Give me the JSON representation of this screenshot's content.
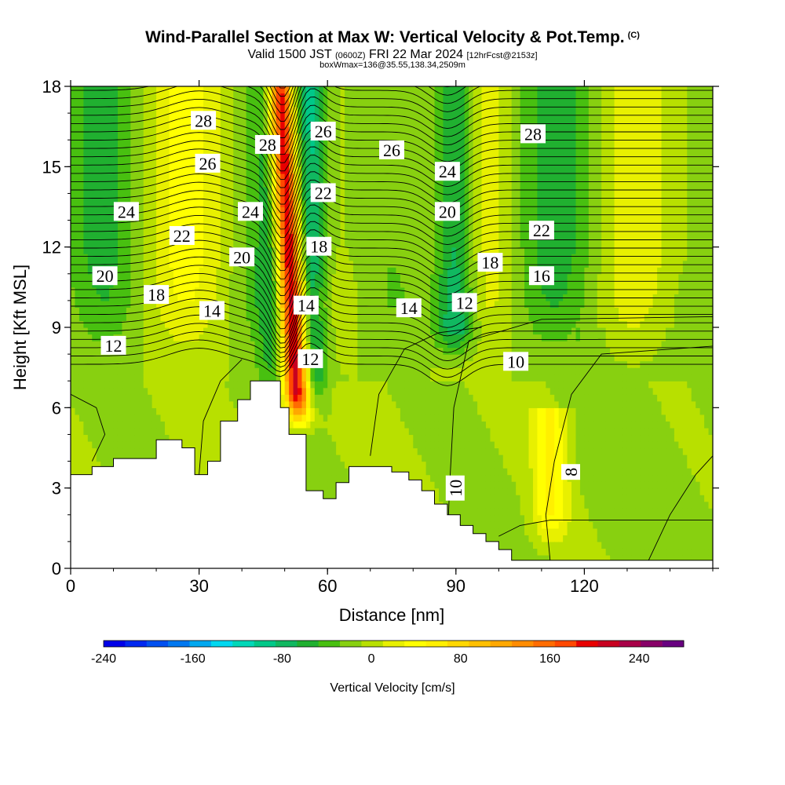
{
  "title": {
    "main": "Wind-Parallel Section at Max W: Vertical Velocity & Pot.Temp.",
    "copyright": "(C)",
    "valid_prefix": "Valid 1500 JST",
    "valid_utc": "(0600Z)",
    "valid_date": "FRI 22 Mar 2024",
    "valid_fcst": "[12hrFcst@2153z]",
    "box": "boxWmax=136@35.55,138.34,2509m"
  },
  "chart_data": {
    "type": "heatmap",
    "xlabel": "Distance [nm]",
    "ylabel": "Height [Kft MSL]",
    "xlim": [
      0,
      150
    ],
    "ylim": [
      0,
      18
    ],
    "x_ticks": [
      0,
      30,
      60,
      90,
      120
    ],
    "y_ticks": [
      0,
      3,
      6,
      9,
      12,
      15,
      18
    ],
    "colorbar": {
      "label": "Vertical Velocity [cm/s]",
      "range": [
        -240,
        280
      ],
      "step": 20,
      "tick_labels": [
        "-240",
        "-160",
        "-80",
        "0",
        "80",
        "160",
        "240"
      ],
      "tick_values": [
        -240,
        -160,
        -80,
        0,
        80,
        160,
        240
      ],
      "colors": [
        "#0000e8",
        "#0028f0",
        "#0050f0",
        "#0078f0",
        "#00a8f0",
        "#00d8f0",
        "#00d8b8",
        "#00c888",
        "#10b860",
        "#20b030",
        "#48c010",
        "#88d010",
        "#b8e000",
        "#e8f000",
        "#ffff00",
        "#fff000",
        "#ffd800",
        "#ffc000",
        "#ffa800",
        "#ff8c00",
        "#ff6c00",
        "#ff4800",
        "#e80000",
        "#c80020",
        "#a80048",
        "#880068",
        "#680080"
      ]
    },
    "terrain": [
      [
        0,
        3.5
      ],
      [
        5,
        3.5
      ],
      [
        5,
        3.8
      ],
      [
        10,
        3.8
      ],
      [
        10,
        4.1
      ],
      [
        20,
        4.1
      ],
      [
        20,
        4.8
      ],
      [
        26,
        4.8
      ],
      [
        26,
        4.5
      ],
      [
        29,
        4.5
      ],
      [
        29,
        3.5
      ],
      [
        32,
        3.5
      ],
      [
        32,
        4.0
      ],
      [
        35,
        4.0
      ],
      [
        35,
        5.5
      ],
      [
        39,
        5.5
      ],
      [
        39,
        6.3
      ],
      [
        42,
        6.3
      ],
      [
        42,
        7.0
      ],
      [
        49,
        7.0
      ],
      [
        49,
        6.0
      ],
      [
        51,
        6.0
      ],
      [
        51,
        5.0
      ],
      [
        55,
        5.0
      ],
      [
        55,
        2.9
      ],
      [
        59,
        2.9
      ],
      [
        59,
        2.6
      ],
      [
        62,
        2.6
      ],
      [
        62,
        3.2
      ],
      [
        65,
        3.2
      ],
      [
        65,
        3.8
      ],
      [
        75,
        3.8
      ],
      [
        75,
        3.6
      ],
      [
        79,
        3.6
      ],
      [
        79,
        3.3
      ],
      [
        82,
        3.3
      ],
      [
        82,
        2.9
      ],
      [
        85,
        2.9
      ],
      [
        85,
        2.4
      ],
      [
        88,
        2.4
      ],
      [
        88,
        2.0
      ],
      [
        91,
        2.0
      ],
      [
        91,
        1.6
      ],
      [
        94,
        1.6
      ],
      [
        94,
        1.3
      ],
      [
        97,
        1.3
      ],
      [
        97,
        1.0
      ],
      [
        100,
        1.0
      ],
      [
        100,
        0.7
      ],
      [
        103,
        0.7
      ],
      [
        103,
        0.3
      ],
      [
        150,
        0.3
      ]
    ],
    "velocity_features": [
      {
        "x": 51,
        "z_from": 6.5,
        "z_to": 18,
        "w": 260
      },
      {
        "x": 47,
        "z_from": 7,
        "z_to": 18,
        "w": -40
      },
      {
        "x": 56,
        "z_from": 7,
        "z_to": 18,
        "w": -80
      },
      {
        "x": 90,
        "z_from": 9,
        "z_to": 18,
        "w": -100
      },
      {
        "x": 112,
        "z_from": 2,
        "z_to": 6,
        "w": 60
      }
    ],
    "theta_contours": [
      {
        "theta": 8,
        "label_at": [
          117,
          3.6
        ]
      },
      {
        "theta": 10,
        "label_at": [
          90,
          3.0
        ]
      },
      {
        "theta": 10,
        "label_at": [
          104,
          7.7
        ]
      },
      {
        "theta": 12,
        "label_at": [
          10,
          8.3
        ]
      },
      {
        "theta": 12,
        "label_at": [
          56,
          7.8
        ]
      },
      {
        "theta": 12,
        "label_at": [
          92,
          9.9
        ]
      },
      {
        "theta": 14,
        "label_at": [
          33,
          9.6
        ]
      },
      {
        "theta": 14,
        "label_at": [
          55,
          9.8
        ]
      },
      {
        "theta": 14,
        "label_at": [
          79,
          9.7
        ]
      },
      {
        "theta": 16,
        "label_at": [
          110,
          10.9
        ]
      },
      {
        "theta": 18,
        "label_at": [
          20,
          10.2
        ]
      },
      {
        "theta": 18,
        "label_at": [
          58,
          12.0
        ]
      },
      {
        "theta": 18,
        "label_at": [
          98,
          11.4
        ]
      },
      {
        "theta": 20,
        "label_at": [
          8,
          10.9
        ]
      },
      {
        "theta": 20,
        "label_at": [
          40,
          11.6
        ]
      },
      {
        "theta": 20,
        "label_at": [
          88,
          13.3
        ]
      },
      {
        "theta": 22,
        "label_at": [
          26,
          12.4
        ]
      },
      {
        "theta": 22,
        "label_at": [
          59,
          14.0
        ]
      },
      {
        "theta": 22,
        "label_at": [
          110,
          12.6
        ]
      },
      {
        "theta": 24,
        "label_at": [
          13,
          13.3
        ]
      },
      {
        "theta": 24,
        "label_at": [
          42,
          13.3
        ]
      },
      {
        "theta": 24,
        "label_at": [
          88,
          14.8
        ]
      },
      {
        "theta": 26,
        "label_at": [
          32,
          15.1
        ]
      },
      {
        "theta": 26,
        "label_at": [
          59,
          16.3
        ]
      },
      {
        "theta": 26,
        "label_at": [
          75,
          15.6
        ]
      },
      {
        "theta": 28,
        "label_at": [
          31,
          16.7
        ]
      },
      {
        "theta": 28,
        "label_at": [
          46,
          15.8
        ]
      },
      {
        "theta": 28,
        "label_at": [
          108,
          16.2
        ]
      }
    ]
  }
}
